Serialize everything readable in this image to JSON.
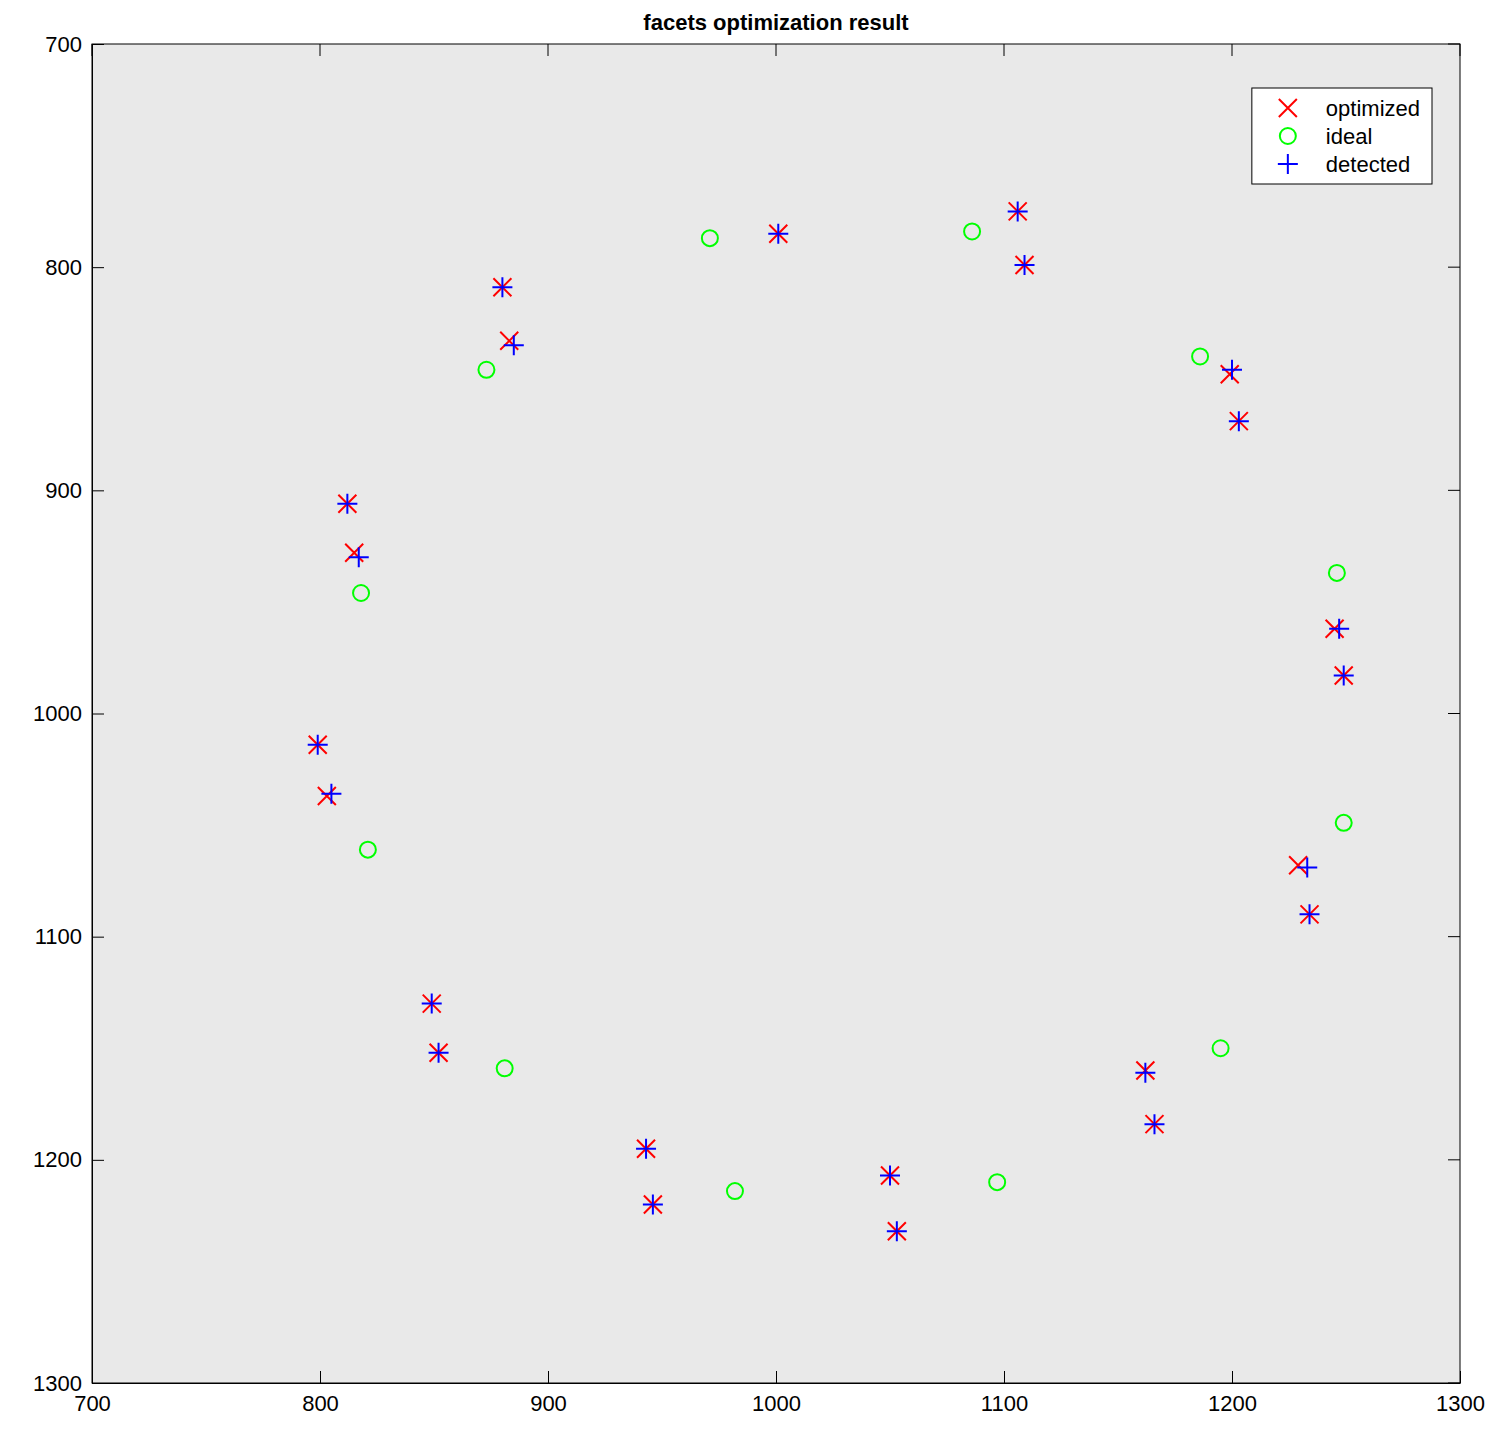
{
  "chart_data": {
    "type": "scatter",
    "title": "facets optimization result",
    "xlim": [
      700,
      1300
    ],
    "ylim": [
      1300,
      700
    ],
    "xticks": [
      700,
      800,
      900,
      1000,
      1100,
      1200,
      1300
    ],
    "yticks": [
      700,
      800,
      900,
      1000,
      1100,
      1200,
      1300
    ],
    "grid": false,
    "legend": "top-right",
    "series": [
      {
        "name": "optimized",
        "color": "#ff0000",
        "marker": "x",
        "x": [
          1001,
          1106,
          1109,
          1199,
          1203,
          1245,
          1249,
          1229,
          1234,
          1162,
          1166,
          1050,
          1053,
          943,
          946,
          849,
          852,
          799,
          803,
          812,
          815,
          880,
          883
        ],
        "y": [
          785,
          775,
          799,
          848,
          869,
          962,
          983,
          1068,
          1090,
          1160,
          1184,
          1207,
          1232,
          1195,
          1220,
          1130,
          1152,
          1014,
          1037,
          906,
          928,
          809,
          833
        ]
      },
      {
        "name": "ideal",
        "color": "#00ff00",
        "marker": "o",
        "x": [
          971,
          1086,
          1186,
          1246,
          1249,
          1195,
          1097,
          982,
          881,
          821,
          818,
          873
        ],
        "y": [
          787,
          784,
          840,
          937,
          1049,
          1150,
          1210,
          1214,
          1159,
          1061,
          946,
          846
        ]
      },
      {
        "name": "detected",
        "color": "#0000ff",
        "marker": "+",
        "x": [
          1001,
          1106,
          1109,
          1200,
          1203,
          1247,
          1249,
          1233,
          1234,
          1162,
          1166,
          1050,
          1053,
          943,
          946,
          849,
          852,
          799,
          805,
          812,
          817,
          880,
          885
        ],
        "y": [
          785,
          775,
          799,
          846,
          869,
          962,
          983,
          1069,
          1090,
          1161,
          1184,
          1207,
          1232,
          1195,
          1220,
          1130,
          1152,
          1014,
          1036,
          906,
          930,
          809,
          835
        ]
      }
    ]
  }
}
